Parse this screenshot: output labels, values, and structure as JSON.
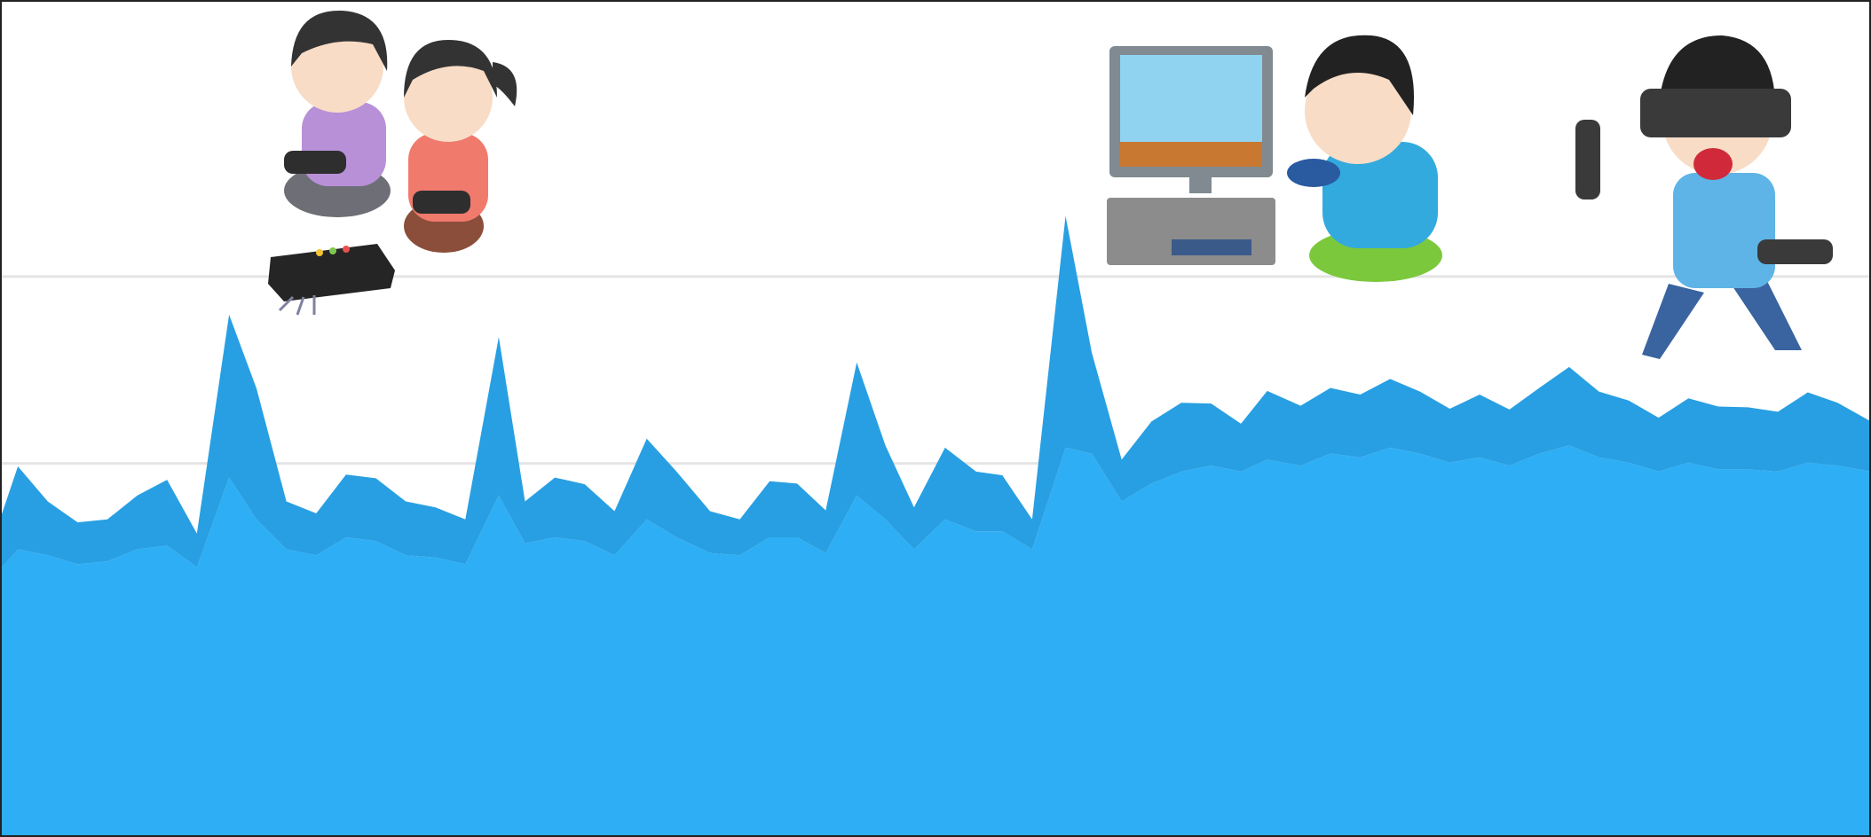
{
  "chart_data": {
    "type": "area",
    "stacked": true,
    "grid": true,
    "x": [
      0,
      15,
      40,
      65,
      90,
      115,
      140,
      165,
      192,
      215,
      240,
      265,
      290,
      315,
      340,
      365,
      390,
      418,
      440,
      465,
      490,
      515,
      542,
      567,
      595,
      620,
      645,
      668,
      692,
      718,
      742,
      766,
      792,
      818,
      840,
      865,
      893,
      915,
      940,
      965,
      990,
      1015,
      1040,
      1062,
      1090,
      1115,
      1140,
      1165,
      1190,
      1215,
      1240,
      1265,
      1290,
      1315,
      1340,
      1365,
      1390,
      1415,
      1440,
      1465,
      1490,
      1515,
      1540,
      1568
    ],
    "xlim": [
      0,
      1568
    ],
    "ylim": [
      0,
      112
    ],
    "yticks": [
      50,
      75
    ],
    "series": [
      {
        "color": "#2eaef5",
        "values": [
          35.8,
          38.5,
          37.7,
          36.5,
          36.9,
          38.5,
          39.0,
          36.1,
          48.1,
          42.5,
          38.5,
          37.7,
          40.1,
          39.6,
          37.7,
          37.4,
          36.5,
          45.7,
          39.3,
          40.1,
          39.6,
          37.7,
          42.5,
          40.1,
          38.0,
          37.7,
          40.1,
          40.1,
          38.0,
          45.7,
          42.5,
          38.5,
          42.5,
          40.9,
          40.9,
          38.5,
          52.1,
          51.3,
          44.9,
          47.3,
          48.9,
          49.7,
          48.9,
          50.5,
          49.7,
          51.3,
          50.8,
          52.1,
          51.3,
          50.1,
          50.8,
          49.7,
          51.3,
          52.4,
          50.8,
          50.1,
          48.9,
          50.1,
          49.2,
          49.2,
          48.9,
          50.1,
          49.7,
          48.9
        ]
      },
      {
        "color": "#289fe2",
        "values": [
          6.7,
          11.1,
          7.2,
          5.6,
          5.6,
          7.2,
          8.8,
          4.5,
          21.8,
          17.5,
          6.4,
          5.6,
          8.4,
          8.4,
          7.2,
          6.7,
          6.0,
          21.2,
          5.6,
          8.0,
          7.6,
          5.9,
          10.8,
          8.8,
          5.6,
          4.8,
          7.5,
          7.2,
          5.7,
          17.8,
          9.9,
          5.6,
          9.6,
          8.0,
          7.5,
          4.0,
          31.0,
          13.5,
          5.6,
          8.3,
          9.2,
          8.3,
          6.4,
          9.2,
          8.0,
          8.8,
          8.4,
          9.2,
          8.3,
          7.2,
          8.4,
          7.5,
          8.8,
          10.5,
          8.8,
          8.3,
          7.2,
          8.6,
          8.4,
          8.3,
          8.0,
          9.4,
          8.4,
          6.7
        ]
      }
    ]
  }
}
